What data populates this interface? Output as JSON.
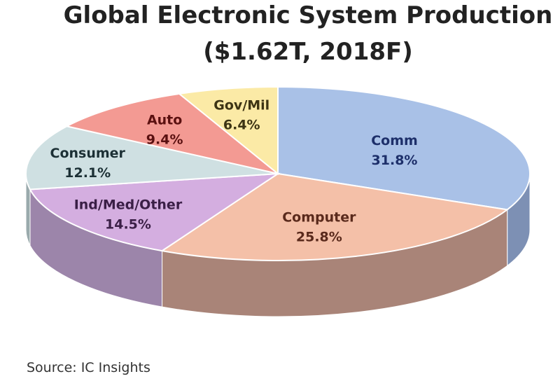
{
  "chart_data": {
    "type": "pie",
    "title_line1": "Global Electronic System Production",
    "title_line2": "($1.62T, 2018F)",
    "source": "Source:  IC Insights",
    "slices": [
      {
        "name": "Comm",
        "value": 31.8,
        "value_label": "31.8%",
        "color": "#a9c1e7",
        "side": "#7d90b4",
        "label_color": "#1d2f6a"
      },
      {
        "name": "Computer",
        "value": 25.8,
        "value_label": "25.8%",
        "color": "#f4c0a8",
        "side": "#a98478",
        "label_color": "#5a2a1c"
      },
      {
        "name": "Ind/Med/Other",
        "value": 14.5,
        "value_label": "14.5%",
        "color": "#d4aee0",
        "side": "#9c85aa",
        "label_color": "#3a1f46"
      },
      {
        "name": "Consumer",
        "value": 12.1,
        "value_label": "12.1%",
        "color": "#cfe0e2",
        "side": "#9aaaac",
        "label_color": "#1c3035"
      },
      {
        "name": "Auto",
        "value": 9.4,
        "value_label": "9.4%",
        "color": "#f39a93",
        "side": "#b06e69",
        "label_color": "#5a1010"
      },
      {
        "name": "Gov/Mil",
        "value": 6.4,
        "value_label": "6.4%",
        "color": "#fbeaa6",
        "side": "#c3b47a",
        "label_color": "#3d3414"
      }
    ]
  }
}
